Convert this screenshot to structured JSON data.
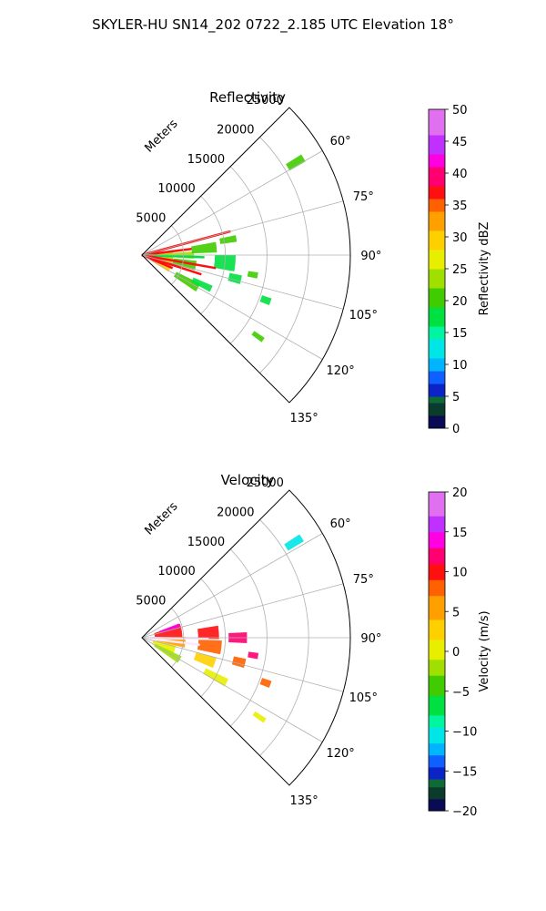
{
  "figure": {
    "suptitle": "SKYLER-HU  SN14_202  0722_2.185 UTC Elevation 18°"
  },
  "chart_data": [
    {
      "type": "heatmap",
      "subtype": "polar-sector-ppi",
      "title": "Reflectivity",
      "radial_axis_label": "Meters",
      "radial_range": [
        0,
        25000
      ],
      "radial_ticks": [
        5000,
        10000,
        15000,
        20000,
        25000
      ],
      "radial_tick_labels": [
        "5000",
        "10000",
        "15000",
        "20000",
        "25000"
      ],
      "azimuth_range_deg": [
        45,
        135
      ],
      "azimuth_ticks": [
        60,
        75,
        90,
        105,
        120,
        135
      ],
      "azimuth_tick_labels": [
        "60°",
        "75°",
        "90°",
        "105°",
        "120°",
        "135°"
      ],
      "grid": true,
      "colorbar": {
        "label": "Reflectivity dBZ",
        "range": [
          0,
          50
        ],
        "ticks": [
          0,
          5,
          10,
          15,
          20,
          25,
          30,
          35,
          40,
          45,
          50
        ],
        "tick_labels": [
          "0",
          "5",
          "10",
          "15",
          "20",
          "25",
          "30",
          "35",
          "40",
          "45",
          "50"
        ],
        "colormap": [
          {
            "v": 0,
            "c": "#0a0a55"
          },
          {
            "v": 2,
            "c": "#0b3b2a"
          },
          {
            "v": 4,
            "c": "#0f6a3a"
          },
          {
            "v": 5,
            "c": "#0a24c8"
          },
          {
            "v": 7,
            "c": "#1060ff"
          },
          {
            "v": 9,
            "c": "#00b4ff"
          },
          {
            "v": 11,
            "c": "#00e6e6"
          },
          {
            "v": 14,
            "c": "#00f5a0"
          },
          {
            "v": 16,
            "c": "#00e040"
          },
          {
            "v": 19,
            "c": "#40cc00"
          },
          {
            "v": 22,
            "c": "#a0e000"
          },
          {
            "v": 25,
            "c": "#e8ee00"
          },
          {
            "v": 28,
            "c": "#ffd000"
          },
          {
            "v": 31,
            "c": "#ffa000"
          },
          {
            "v": 34,
            "c": "#ff6000"
          },
          {
            "v": 36,
            "c": "#ff1010"
          },
          {
            "v": 38,
            "c": "#ff0070"
          },
          {
            "v": 41,
            "c": "#ff00e0"
          },
          {
            "v": 43,
            "c": "#c030ff"
          },
          {
            "v": 46,
            "c": "#e070f0"
          },
          {
            "v": 50,
            "c": "#ffe8ff"
          }
        ]
      },
      "cells": [
        {
          "az": 96,
          "r": 2500,
          "w": 2500,
          "h": 24,
          "v": 24
        },
        {
          "az": 112,
          "r": 2500,
          "w": 2500,
          "h": 20,
          "v": 28
        },
        {
          "az": 101,
          "r": 5200,
          "w": 2800,
          "h": 10,
          "v": 20
        },
        {
          "az": 90,
          "r": 5000,
          "w": 2500,
          "h": 8,
          "v": 22
        },
        {
          "az": 120,
          "r": 6200,
          "w": 3200,
          "h": 8,
          "v": 19
        },
        {
          "az": 116,
          "r": 8000,
          "w": 2500,
          "h": 5,
          "v": 18
        },
        {
          "az": 84,
          "r": 7500,
          "w": 3000,
          "h": 8,
          "v": 19
        },
        {
          "az": 95,
          "r": 10000,
          "w": 2500,
          "h": 10,
          "v": 18
        },
        {
          "az": 104,
          "r": 11500,
          "w": 1500,
          "h": 5,
          "v": 17
        },
        {
          "az": 80,
          "r": 10500,
          "w": 2000,
          "h": 4,
          "v": 20
        },
        {
          "az": 100,
          "r": 13500,
          "w": 1200,
          "h": 3,
          "v": 19
        },
        {
          "az": 110,
          "r": 15800,
          "w": 1200,
          "h": 3,
          "v": 18
        },
        {
          "az": 125,
          "r": 17000,
          "w": 1500,
          "h": 2,
          "v": 19
        },
        {
          "az": 59,
          "r": 21500,
          "w": 2200,
          "h": 2.5,
          "v": 19
        }
      ],
      "streaks": [
        {
          "az": 75,
          "r1": 0,
          "r2": 11000,
          "v": 37
        },
        {
          "az": 83,
          "r1": 0,
          "r2": 6000,
          "v": 37
        },
        {
          "az": 92,
          "r1": 0,
          "r2": 7500,
          "v": 16
        },
        {
          "az": 100,
          "r1": 0,
          "r2": 9000,
          "v": 37
        },
        {
          "az": 108,
          "r1": 0,
          "r2": 7500,
          "v": 37
        },
        {
          "az": 113,
          "r1": 0,
          "r2": 4000,
          "v": 37
        }
      ]
    },
    {
      "type": "heatmap",
      "subtype": "polar-sector-ppi",
      "title": "Velocity",
      "radial_axis_label": "Meters",
      "radial_range": [
        0,
        25000
      ],
      "radial_ticks": [
        5000,
        10000,
        15000,
        20000,
        25000
      ],
      "radial_tick_labels": [
        "5000",
        "10000",
        "15000",
        "20000",
        "25000"
      ],
      "azimuth_range_deg": [
        45,
        135
      ],
      "azimuth_ticks": [
        60,
        75,
        90,
        105,
        120,
        135
      ],
      "azimuth_tick_labels": [
        "60°",
        "75°",
        "90°",
        "105°",
        "120°",
        "135°"
      ],
      "grid": true,
      "colorbar": {
        "label": "Velocity (m/s)",
        "range": [
          -20,
          20
        ],
        "ticks": [
          -20,
          -15,
          -10,
          -5,
          0,
          5,
          10,
          15,
          20
        ],
        "tick_labels": [
          "−20",
          "−15",
          "−10",
          "−5",
          "0",
          "5",
          "10",
          "15",
          "20"
        ],
        "colormap": [
          {
            "v": -20,
            "c": "#0a0a55"
          },
          {
            "v": -18.5,
            "c": "#0b3b2a"
          },
          {
            "v": -17,
            "c": "#0f6a3a"
          },
          {
            "v": -16,
            "c": "#0a24c8"
          },
          {
            "v": -14.5,
            "c": "#1060ff"
          },
          {
            "v": -13,
            "c": "#00b4ff"
          },
          {
            "v": -11.5,
            "c": "#00e6e6"
          },
          {
            "v": -9.5,
            "c": "#00f5a0"
          },
          {
            "v": -8,
            "c": "#00e040"
          },
          {
            "v": -5.5,
            "c": "#40cc00"
          },
          {
            "v": -3,
            "c": "#a0e000"
          },
          {
            "v": -1,
            "c": "#e8ee00"
          },
          {
            "v": 1.5,
            "c": "#ffd000"
          },
          {
            "v": 4,
            "c": "#ffa000"
          },
          {
            "v": 7,
            "c": "#ff6000"
          },
          {
            "v": 9,
            "c": "#ff1010"
          },
          {
            "v": 11,
            "c": "#ff0070"
          },
          {
            "v": 13,
            "c": "#ff00e0"
          },
          {
            "v": 15,
            "c": "#c030ff"
          },
          {
            "v": 17,
            "c": "#e070f0"
          },
          {
            "v": 20,
            "c": "#ffe8ff"
          }
        ]
      },
      "cells": [
        {
          "az": 80,
          "r": 3200,
          "w": 3300,
          "h": 20,
          "v": 9
        },
        {
          "az": 96,
          "r": 3500,
          "w": 3500,
          "h": 14,
          "v": 5
        },
        {
          "az": 110,
          "r": 2800,
          "w": 2800,
          "h": 14,
          "v": 1
        },
        {
          "az": 120,
          "r": 3500,
          "w": 3500,
          "h": 10,
          "v": -3
        },
        {
          "az": 72,
          "r": 3500,
          "w": 2500,
          "h": 6,
          "v": 13
        },
        {
          "az": 86,
          "r": 8000,
          "w": 2500,
          "h": 10,
          "v": 10
        },
        {
          "az": 97,
          "r": 8200,
          "w": 2800,
          "h": 10,
          "v": 7
        },
        {
          "az": 109,
          "r": 8000,
          "w": 2500,
          "h": 8,
          "v": 2
        },
        {
          "az": 118,
          "r": 10000,
          "w": 3000,
          "h": 5,
          "v": 0
        },
        {
          "az": 90,
          "r": 11500,
          "w": 2200,
          "h": 6,
          "v": 12
        },
        {
          "az": 104,
          "r": 12000,
          "w": 1500,
          "h": 5,
          "v": 7
        },
        {
          "az": 99,
          "r": 13500,
          "w": 1200,
          "h": 3,
          "v": 12
        },
        {
          "az": 110,
          "r": 15800,
          "w": 1200,
          "h": 3,
          "v": 7
        },
        {
          "az": 124,
          "r": 17000,
          "w": 1600,
          "h": 2,
          "v": 1
        },
        {
          "az": 58,
          "r": 21500,
          "w": 2200,
          "h": 2.5,
          "v": -11
        }
      ],
      "streaks": [
        {
          "az": 91,
          "r1": 1000,
          "r2": 8000,
          "v": 20
        },
        {
          "az": 97,
          "r1": 1000,
          "r2": 7000,
          "v": 20
        }
      ]
    }
  ]
}
